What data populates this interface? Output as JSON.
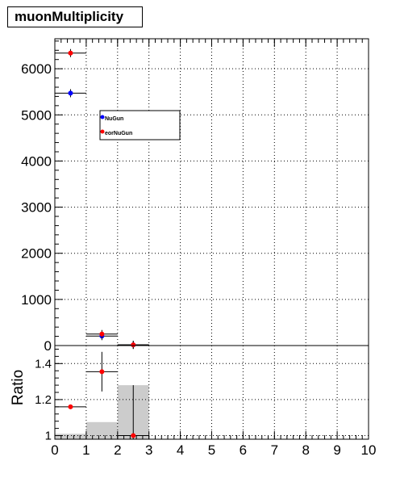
{
  "title": "muonMultiplicity",
  "chart_data": [
    {
      "type": "scatter",
      "panel": "top",
      "title": "muonMultiplicity",
      "xlim": [
        0,
        10
      ],
      "ylim": [
        0,
        6650
      ],
      "yticks": [
        0,
        1000,
        2000,
        3000,
        4000,
        5000,
        6000
      ],
      "grid": true,
      "legend": {
        "placement": "top-left",
        "entries": [
          "NuGun",
          "eorNuGun"
        ]
      },
      "series": [
        {
          "name": "NuGun",
          "color": "#0000ff",
          "points": [
            {
              "x": 0.5,
              "y": 5470
            },
            {
              "x": 1.5,
              "y": 205
            },
            {
              "x": 2.5,
              "y": 15
            }
          ]
        },
        {
          "name": "eorNuGun",
          "color": "#ff0000",
          "points": [
            {
              "x": 0.5,
              "y": 6340
            },
            {
              "x": 1.5,
              "y": 250
            },
            {
              "x": 2.5,
              "y": 15
            }
          ]
        }
      ]
    },
    {
      "type": "bar",
      "panel": "ratio",
      "ylabel": "Ratio",
      "xlim": [
        0,
        10
      ],
      "ylim": [
        0.98,
        1.5
      ],
      "yticks": [
        1,
        1.2,
        1.4
      ],
      "xticks": [
        0,
        1,
        2,
        3,
        4,
        5,
        6,
        7,
        8,
        9,
        10
      ],
      "grid": true,
      "band_color": "#cccccc",
      "band": [
        {
          "x": 0.5,
          "low": 0.98,
          "high": 1.01
        },
        {
          "x": 1.5,
          "low": 0.98,
          "high": 1.075
        },
        {
          "x": 2.5,
          "low": 0.98,
          "high": 1.28
        }
      ],
      "ratio_points": [
        {
          "x": 0.5,
          "y": 1.16,
          "err": 0.005
        },
        {
          "x": 1.5,
          "y": 1.355,
          "err": 0.11
        },
        {
          "x": 2.5,
          "y": 1.0,
          "err": 0.28
        }
      ]
    }
  ]
}
